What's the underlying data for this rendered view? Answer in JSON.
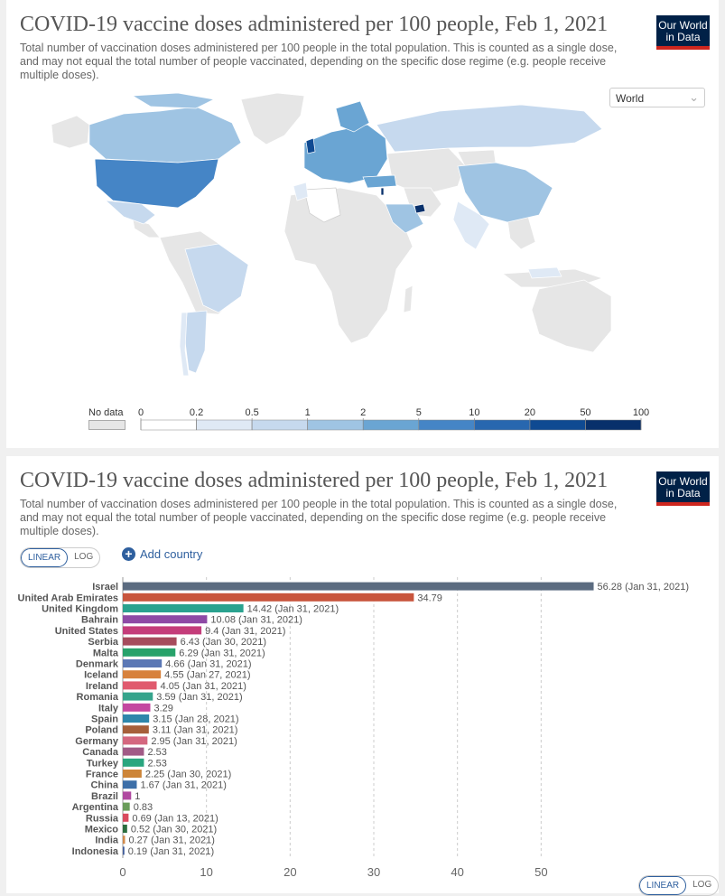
{
  "map_panel": {
    "title": "COVID-19 vaccine doses administered per 100 people, Feb 1, 2021",
    "subtitle": "Total number of vaccination doses administered per 100 people in the total population. This is counted as a single dose, and may not equal the total number of people vaccinated, depending on the specific dose regime (e.g. people receive multiple doses).",
    "logo": [
      "Our World",
      "in Data"
    ],
    "region_select": "World",
    "legend": {
      "no_data_label": "No data",
      "thresholds": [
        "0",
        "0.2",
        "0.5",
        "1",
        "2",
        "5",
        "10",
        "20",
        "50",
        "100"
      ],
      "colors": [
        "#ffffff",
        "#dfe9f5",
        "#c6d9ee",
        "#9fc4e3",
        "#6aa5d3",
        "#4585c6",
        "#2867af",
        "#0f4a92",
        "#08306b"
      ]
    }
  },
  "bar_panel": {
    "title": "COVID-19 vaccine doses administered per 100 people, Feb 1, 2021",
    "subtitle": "Total number of vaccination doses administered per 100 people in the total population. This is counted as a single dose, and may not equal the total number of people vaccinated, depending on the specific dose regime (e.g. people receive multiple doses).",
    "logo": [
      "Our World",
      "in Data"
    ],
    "toggle": {
      "linear": "LINEAR",
      "log": "LOG"
    },
    "add_country": "Add country"
  },
  "chart_data": {
    "type": "bar",
    "orientation": "horizontal",
    "xlim": [
      0,
      60
    ],
    "xticks": [
      0,
      10,
      20,
      30,
      40,
      50
    ],
    "categories": [
      "Israel",
      "United Arab Emirates",
      "United Kingdom",
      "Bahrain",
      "United States",
      "Serbia",
      "Malta",
      "Denmark",
      "Iceland",
      "Ireland",
      "Romania",
      "Italy",
      "Spain",
      "Poland",
      "Germany",
      "Canada",
      "Turkey",
      "France",
      "China",
      "Brazil",
      "Argentina",
      "Russia",
      "Mexico",
      "India",
      "Indonesia"
    ],
    "values": [
      56.28,
      34.79,
      14.42,
      10.08,
      9.4,
      6.43,
      6.29,
      4.66,
      4.55,
      4.05,
      3.59,
      3.29,
      3.15,
      3.11,
      2.95,
      2.53,
      2.53,
      2.25,
      1.67,
      1,
      0.83,
      0.69,
      0.52,
      0.27,
      0.19
    ],
    "value_labels": [
      "56.28 (Jan 31, 2021)",
      "34.79",
      "14.42 (Jan 31, 2021)",
      "10.08 (Jan 31, 2021)",
      "9.4 (Jan 31, 2021)",
      "6.43 (Jan 30, 2021)",
      "6.29 (Jan 31, 2021)",
      "4.66 (Jan 31, 2021)",
      "4.55 (Jan 27, 2021)",
      "4.05 (Jan 31, 2021)",
      "3.59 (Jan 31, 2021)",
      "3.29",
      "3.15 (Jan 28, 2021)",
      "3.11 (Jan 31, 2021)",
      "2.95 (Jan 31, 2021)",
      "2.53",
      "2.53",
      "2.25 (Jan 30, 2021)",
      "1.67 (Jan 31, 2021)",
      "1",
      "0.83",
      "0.69 (Jan 13, 2021)",
      "0.52 (Jan 30, 2021)",
      "0.27 (Jan 31, 2021)",
      "0.19 (Jan 31, 2021)"
    ],
    "colors": [
      "#5b6b80",
      "#c8553d",
      "#2aa28f",
      "#8e4aa5",
      "#c43d7a",
      "#a64b5c",
      "#27a26a",
      "#5b78b5",
      "#d7813c",
      "#e05a6e",
      "#36a48c",
      "#c447a0",
      "#2e86ab",
      "#a65f3a",
      "#d4677f",
      "#a15a86",
      "#2aa67f",
      "#cd8538",
      "#3d6fa8",
      "#b04aa0",
      "#6a9c5a",
      "#d94a5e",
      "#2c6e3f",
      "#d28a4a",
      "#3f5b9a"
    ],
    "grid": true
  }
}
